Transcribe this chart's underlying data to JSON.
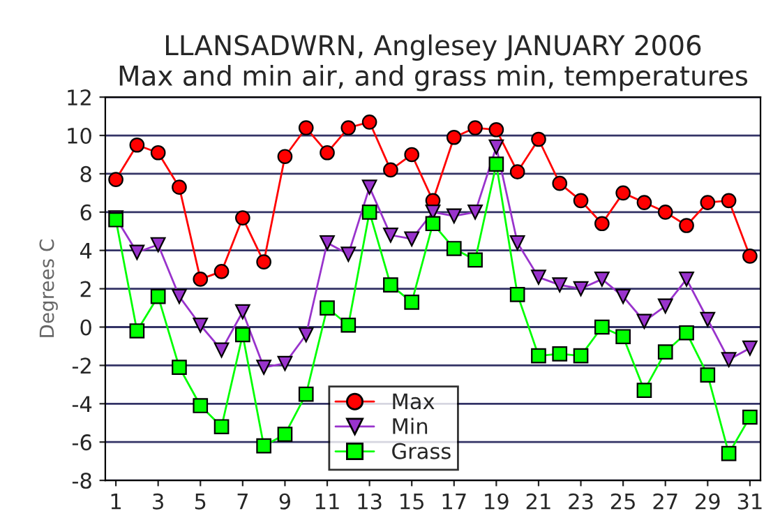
{
  "chart_data": {
    "type": "line",
    "title": "LLANSADWRN, Anglesey JANUARY 2006\nMax and min air, and grass min, temperatures",
    "ylabel": "Degrees C",
    "x": [
      1,
      2,
      3,
      4,
      5,
      6,
      7,
      8,
      9,
      10,
      11,
      12,
      13,
      14,
      15,
      16,
      17,
      18,
      19,
      20,
      21,
      22,
      23,
      24,
      25,
      26,
      27,
      28,
      29,
      30,
      31
    ],
    "series": [
      {
        "name": "Max",
        "color": "#ff0000",
        "marker": "circle",
        "values": [
          7.7,
          9.5,
          9.1,
          7.3,
          2.5,
          2.9,
          5.7,
          3.4,
          8.9,
          10.4,
          9.1,
          10.4,
          10.7,
          8.2,
          9.0,
          6.6,
          9.9,
          10.4,
          10.3,
          8.1,
          9.8,
          7.5,
          6.6,
          5.4,
          7.0,
          6.5,
          6.0,
          5.3,
          6.5,
          6.6,
          3.7
        ]
      },
      {
        "name": "Min",
        "color": "#9933cc",
        "marker": "triangle",
        "values": [
          5.7,
          3.9,
          4.3,
          1.6,
          0.1,
          -1.2,
          0.8,
          -2.1,
          -1.9,
          -0.4,
          4.4,
          3.8,
          7.3,
          4.8,
          4.6,
          6.0,
          5.8,
          6.0,
          9.4,
          4.4,
          2.6,
          2.2,
          2.0,
          2.5,
          1.6,
          0.3,
          1.1,
          2.5,
          0.4,
          -1.7,
          -1.1
        ]
      },
      {
        "name": "Grass",
        "color": "#00ff00",
        "marker": "square",
        "values": [
          5.6,
          -0.2,
          1.6,
          -2.1,
          -4.1,
          -5.2,
          -0.4,
          -6.2,
          -5.6,
          -3.5,
          1.0,
          0.1,
          6.0,
          2.2,
          1.3,
          5.4,
          4.1,
          3.5,
          8.5,
          1.7,
          -1.5,
          -1.4,
          -1.5,
          0.0,
          -0.5,
          -3.3,
          -1.3,
          -0.3,
          -2.5,
          -6.6,
          -4.7
        ]
      }
    ],
    "xlim": [
      0.5,
      31.5
    ],
    "xticks": [
      1,
      3,
      5,
      7,
      9,
      11,
      13,
      15,
      17,
      19,
      21,
      23,
      25,
      27,
      29,
      31
    ],
    "ylim": [
      -8,
      12
    ],
    "yticks": [
      -8,
      -6,
      -4,
      -2,
      0,
      2,
      4,
      6,
      8,
      10,
      12
    ],
    "grid": "y",
    "legend": "bottom"
  }
}
